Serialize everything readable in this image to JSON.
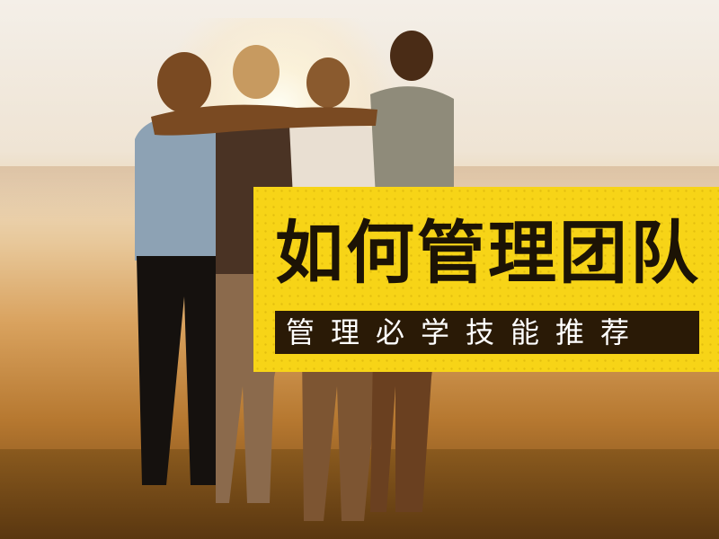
{
  "banner": {
    "title": "如何管理团队",
    "subtitle": "管理必学技能推荐"
  },
  "colors": {
    "banner_yellow": "#f7d417",
    "subtitle_bar": "#2a1a06",
    "title_text": "#1c1305"
  }
}
